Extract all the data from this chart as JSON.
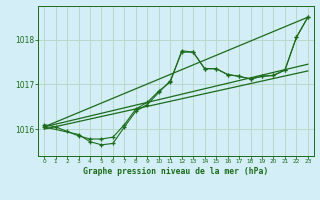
{
  "title": "Graphe pression niveau de la mer (hPa)",
  "bg_color": "#d4eef7",
  "grid_color": "#b8d8c8",
  "line_color": "#1a6b1a",
  "ylim": [
    1015.4,
    1018.75
  ],
  "xlim": [
    -0.5,
    23.5
  ],
  "yticks": [
    1016,
    1017,
    1018
  ],
  "xticks": [
    0,
    1,
    2,
    3,
    4,
    5,
    6,
    7,
    8,
    9,
    10,
    11,
    12,
    13,
    14,
    15,
    16,
    17,
    18,
    19,
    20,
    21,
    22,
    23
  ],
  "series": [
    {
      "x": [
        0,
        1,
        2,
        3,
        4,
        5,
        6,
        7,
        8,
        9,
        10,
        11,
        12,
        13,
        14,
        15,
        16,
        17,
        18,
        19,
        20,
        21,
        22,
        23
      ],
      "y": [
        1016.1,
        1016.05,
        1015.95,
        1015.85,
        1015.78,
        1015.78,
        1015.82,
        1016.1,
        1016.45,
        1016.6,
        1016.85,
        1017.05,
        1017.75,
        1017.72,
        1017.35,
        1017.35,
        1017.22,
        1017.18,
        1017.12,
        1017.18,
        1017.2,
        1017.32,
        1018.05,
        1018.5
      ]
    },
    {
      "x": [
        0,
        3,
        4,
        5,
        6,
        7,
        8,
        9,
        10,
        11,
        12,
        13,
        14,
        15,
        16,
        17,
        18,
        19,
        20,
        21,
        22,
        23
      ],
      "y": [
        1016.05,
        1015.88,
        1015.72,
        1015.65,
        1015.68,
        1016.05,
        1016.4,
        1016.55,
        1016.82,
        1017.08,
        1017.72,
        1017.72,
        1017.35,
        1017.35,
        1017.22,
        1017.18,
        1017.12,
        1017.18,
        1017.2,
        1017.32,
        1018.05,
        1018.5
      ]
    },
    {
      "x": [
        0,
        23
      ],
      "y": [
        1016.05,
        1017.45
      ]
    },
    {
      "x": [
        0,
        23
      ],
      "y": [
        1016.0,
        1017.3
      ]
    },
    {
      "x": [
        0,
        23
      ],
      "y": [
        1016.05,
        1018.5
      ]
    }
  ]
}
